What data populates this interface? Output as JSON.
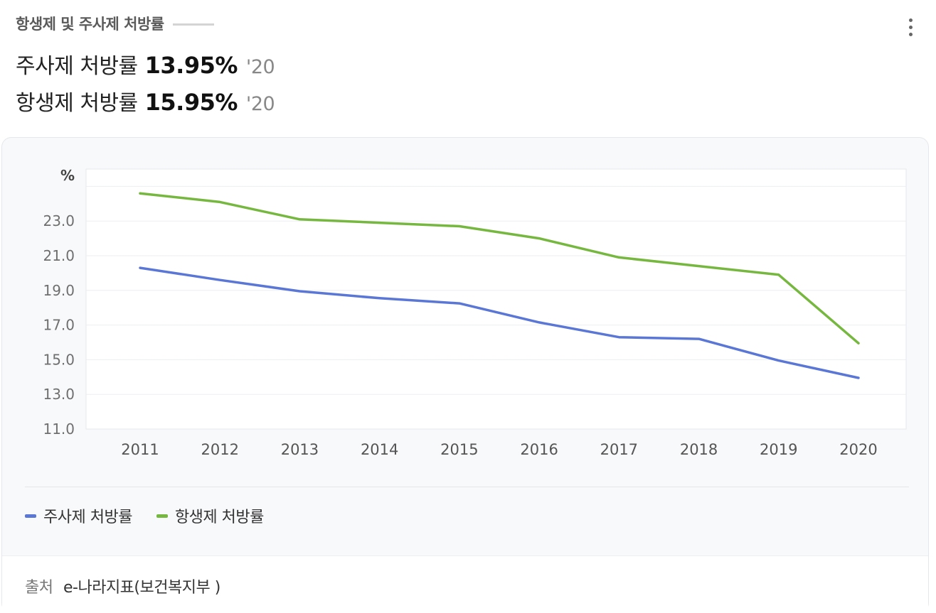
{
  "header": {
    "title": "항생제 및 주사제 처방률"
  },
  "stats": [
    {
      "label": "주사제 처방률",
      "value": "13.95%",
      "year": "'20"
    },
    {
      "label": "항생제 처방률",
      "value": "15.95%",
      "year": "'20"
    }
  ],
  "chart_data": {
    "type": "line",
    "x": [
      "2011",
      "2012",
      "2013",
      "2014",
      "2015",
      "2016",
      "2017",
      "2018",
      "2019",
      "2020"
    ],
    "unit_label": "%",
    "ylim": [
      11,
      26
    ],
    "yticks": [
      "11.0",
      "13.0",
      "15.0",
      "17.0",
      "19.0",
      "21.0",
      "23.0"
    ],
    "grid": true,
    "legend_position": "bottom-left",
    "series": [
      {
        "name": "주사제 처방률",
        "color": "#5b77d6",
        "values": [
          20.3,
          19.6,
          18.95,
          18.55,
          18.25,
          17.15,
          16.3,
          16.2,
          14.95,
          13.95
        ]
      },
      {
        "name": "항생제 처방률",
        "color": "#76b83f",
        "values": [
          24.6,
          24.1,
          23.1,
          22.9,
          22.7,
          22.0,
          20.9,
          20.4,
          19.9,
          15.95
        ]
      }
    ]
  },
  "source": {
    "label": "출처",
    "text": "e-나라지표(보건복지부 )"
  }
}
